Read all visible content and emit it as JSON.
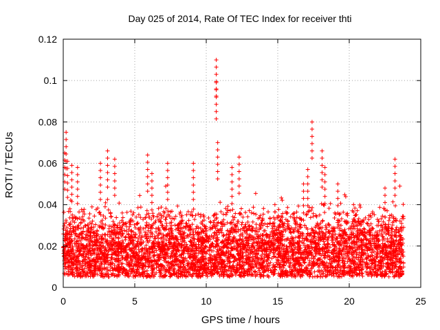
{
  "chart_data": {
    "type": "scatter",
    "title": "Day 025 of 2014, Rate Of TEC Index for receiver thti",
    "xlabel": "GPS time / hours",
    "ylabel": "ROTI / TECUs",
    "xlim": [
      0,
      25
    ],
    "ylim": [
      0,
      0.12
    ],
    "xticks": [
      0,
      5,
      10,
      15,
      20,
      25
    ],
    "xtick_labels": [
      "0",
      "5",
      "10",
      "15",
      "20",
      "25"
    ],
    "yticks": [
      0,
      0.02,
      0.04,
      0.06,
      0.08,
      0.1,
      0.12
    ],
    "ytick_labels": [
      "0",
      "0.02",
      "0.04",
      "0.06",
      "0.08",
      "0.1",
      "0.12"
    ],
    "grid": true,
    "marker": "+",
    "color": "#ff0000",
    "series": [
      {
        "name": "ROTI",
        "x_range": [
          0,
          23.8
        ],
        "baseline_range": [
          0.005,
          0.04
        ],
        "notable_points": [
          {
            "x": 0.2,
            "y": 0.075
          },
          {
            "x": 10.7,
            "y": 0.11
          },
          {
            "x": 10.7,
            "y": 0.099
          },
          {
            "x": 17.4,
            "y": 0.08
          },
          {
            "x": 3.1,
            "y": 0.066
          },
          {
            "x": 0.1,
            "y": 0.065
          },
          {
            "x": 18.1,
            "y": 0.066
          },
          {
            "x": 5.9,
            "y": 0.064
          },
          {
            "x": 12.3,
            "y": 0.063
          },
          {
            "x": 23.2,
            "y": 0.062
          },
          {
            "x": 9.1,
            "y": 0.06
          },
          {
            "x": 7.3,
            "y": 0.06
          },
          {
            "x": 3.6,
            "y": 0.062
          },
          {
            "x": 0.3,
            "y": 0.061
          },
          {
            "x": 0.6,
            "y": 0.059
          },
          {
            "x": 1.0,
            "y": 0.058
          },
          {
            "x": 2.6,
            "y": 0.06
          },
          {
            "x": 11.8,
            "y": 0.058
          },
          {
            "x": 10.8,
            "y": 0.07
          },
          {
            "x": 18.3,
            "y": 0.058
          },
          {
            "x": 17.1,
            "y": 0.057
          },
          {
            "x": 6.2,
            "y": 0.055
          },
          {
            "x": 19.2,
            "y": 0.05
          },
          {
            "x": 22.5,
            "y": 0.048
          },
          {
            "x": 16.8,
            "y": 0.05
          },
          {
            "x": 14.8,
            "y": 0.04
          },
          {
            "x": 20.3,
            "y": 0.04
          }
        ]
      }
    ]
  }
}
